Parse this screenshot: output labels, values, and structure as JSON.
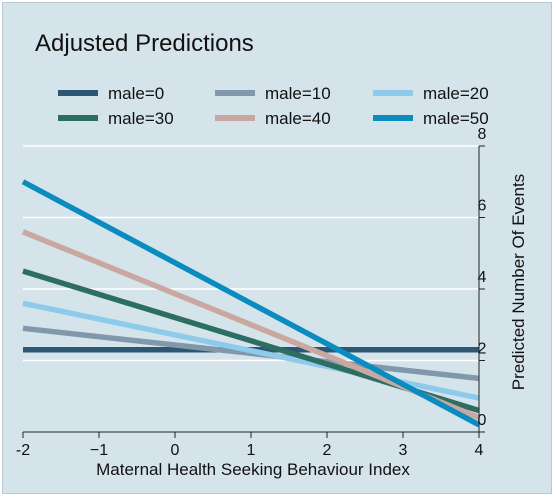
{
  "chart_data": {
    "type": "line",
    "title": "Adjusted Predictions",
    "xlabel": "Maternal Health Seeking Behaviour Index",
    "ylabel": "Predicted Number Of Events",
    "xlim": [
      -2,
      4
    ],
    "ylim": [
      0,
      8
    ],
    "xticks": [
      -2,
      -1,
      0,
      1,
      2,
      3,
      4
    ],
    "yticks": [
      0,
      2,
      4,
      6,
      8
    ],
    "xtick_labels": [
      "-2",
      "−1",
      "0",
      "1",
      "2",
      "3",
      "4"
    ],
    "ytick_labels": [
      "0",
      "2",
      "4",
      "6",
      "8"
    ],
    "grid": "horizontal",
    "y_axis_side": "right",
    "legend_position": "top",
    "series": [
      {
        "name": "male=0",
        "color": "#2d5673",
        "x": [
          -2,
          4
        ],
        "y": [
          2.3,
          2.3
        ]
      },
      {
        "name": "male=10",
        "color": "#8198ab",
        "x": [
          -2,
          4
        ],
        "y": [
          2.9,
          1.5
        ]
      },
      {
        "name": "male=20",
        "color": "#8ecbeb",
        "x": [
          -2,
          4
        ],
        "y": [
          3.6,
          0.95
        ]
      },
      {
        "name": "male=30",
        "color": "#2d6e63",
        "x": [
          -2,
          4
        ],
        "y": [
          4.5,
          0.6
        ]
      },
      {
        "name": "male=40",
        "color": "#c8a8a0",
        "x": [
          -2,
          4
        ],
        "y": [
          5.6,
          0.4
        ]
      },
      {
        "name": "male=50",
        "color": "#0a8cc0",
        "x": [
          -2,
          4
        ],
        "y": [
          7.0,
          0.2
        ]
      }
    ]
  }
}
